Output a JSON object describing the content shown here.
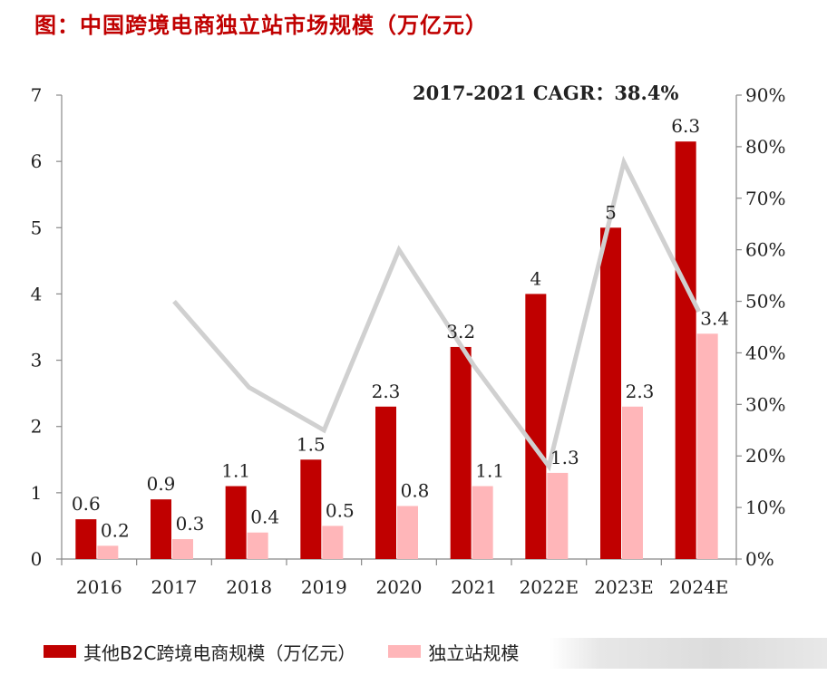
{
  "title": "图：中国跨境电商独立站市场规模（万亿元）",
  "colors": {
    "other_b2c": "#c00000",
    "independent": "#ffb6b9",
    "yoy_line": "#d0d0d0",
    "title": "#c00000"
  },
  "chart_data": {
    "type": "bar",
    "title": "图：中国跨境电商独立站市场规模（万亿元）",
    "annotation": "2017-2021 CAGR：38.4%",
    "categories": [
      "2016",
      "2017",
      "2018",
      "2019",
      "2020",
      "2021",
      "2022E",
      "2023E",
      "2024E"
    ],
    "ylim": [
      0,
      7
    ],
    "y_ticks": [
      "0",
      "1",
      "2",
      "3",
      "4",
      "5",
      "6",
      "7"
    ],
    "y2lim": [
      0,
      0.9
    ],
    "y2_ticks": [
      "0%",
      "10%",
      "20%",
      "30%",
      "40%",
      "50%",
      "60%",
      "70%",
      "80%",
      "90%"
    ],
    "series": [
      {
        "name": "其他B2C跨境电商规模（万亿元）",
        "type": "bar",
        "values": [
          0.6,
          0.9,
          1.1,
          1.5,
          2.3,
          3.2,
          4,
          5,
          6.3
        ],
        "labels": [
          "0.6",
          "0.9",
          "1.1",
          "1.5",
          "2.3",
          "3.2",
          "4",
          "5",
          "6.3"
        ]
      },
      {
        "name": "独立站规模",
        "type": "bar",
        "values": [
          0.2,
          0.3,
          0.4,
          0.5,
          0.8,
          1.1,
          1.3,
          2.3,
          3.4
        ],
        "labels": [
          "0.2",
          "0.3",
          "0.4",
          "0.5",
          "0.8",
          "1.1",
          "1.3",
          "2.3",
          "3.4"
        ]
      },
      {
        "type": "line",
        "axis": "right",
        "values": [
          null,
          0.5,
          0.333,
          0.25,
          0.6,
          0.375,
          0.18,
          0.77,
          0.48
        ]
      }
    ],
    "legend_position": "bottom",
    "grid": false
  },
  "legend": {
    "item1": "其他B2C跨境电商规模（万亿元）",
    "item2": "独立站规模"
  }
}
